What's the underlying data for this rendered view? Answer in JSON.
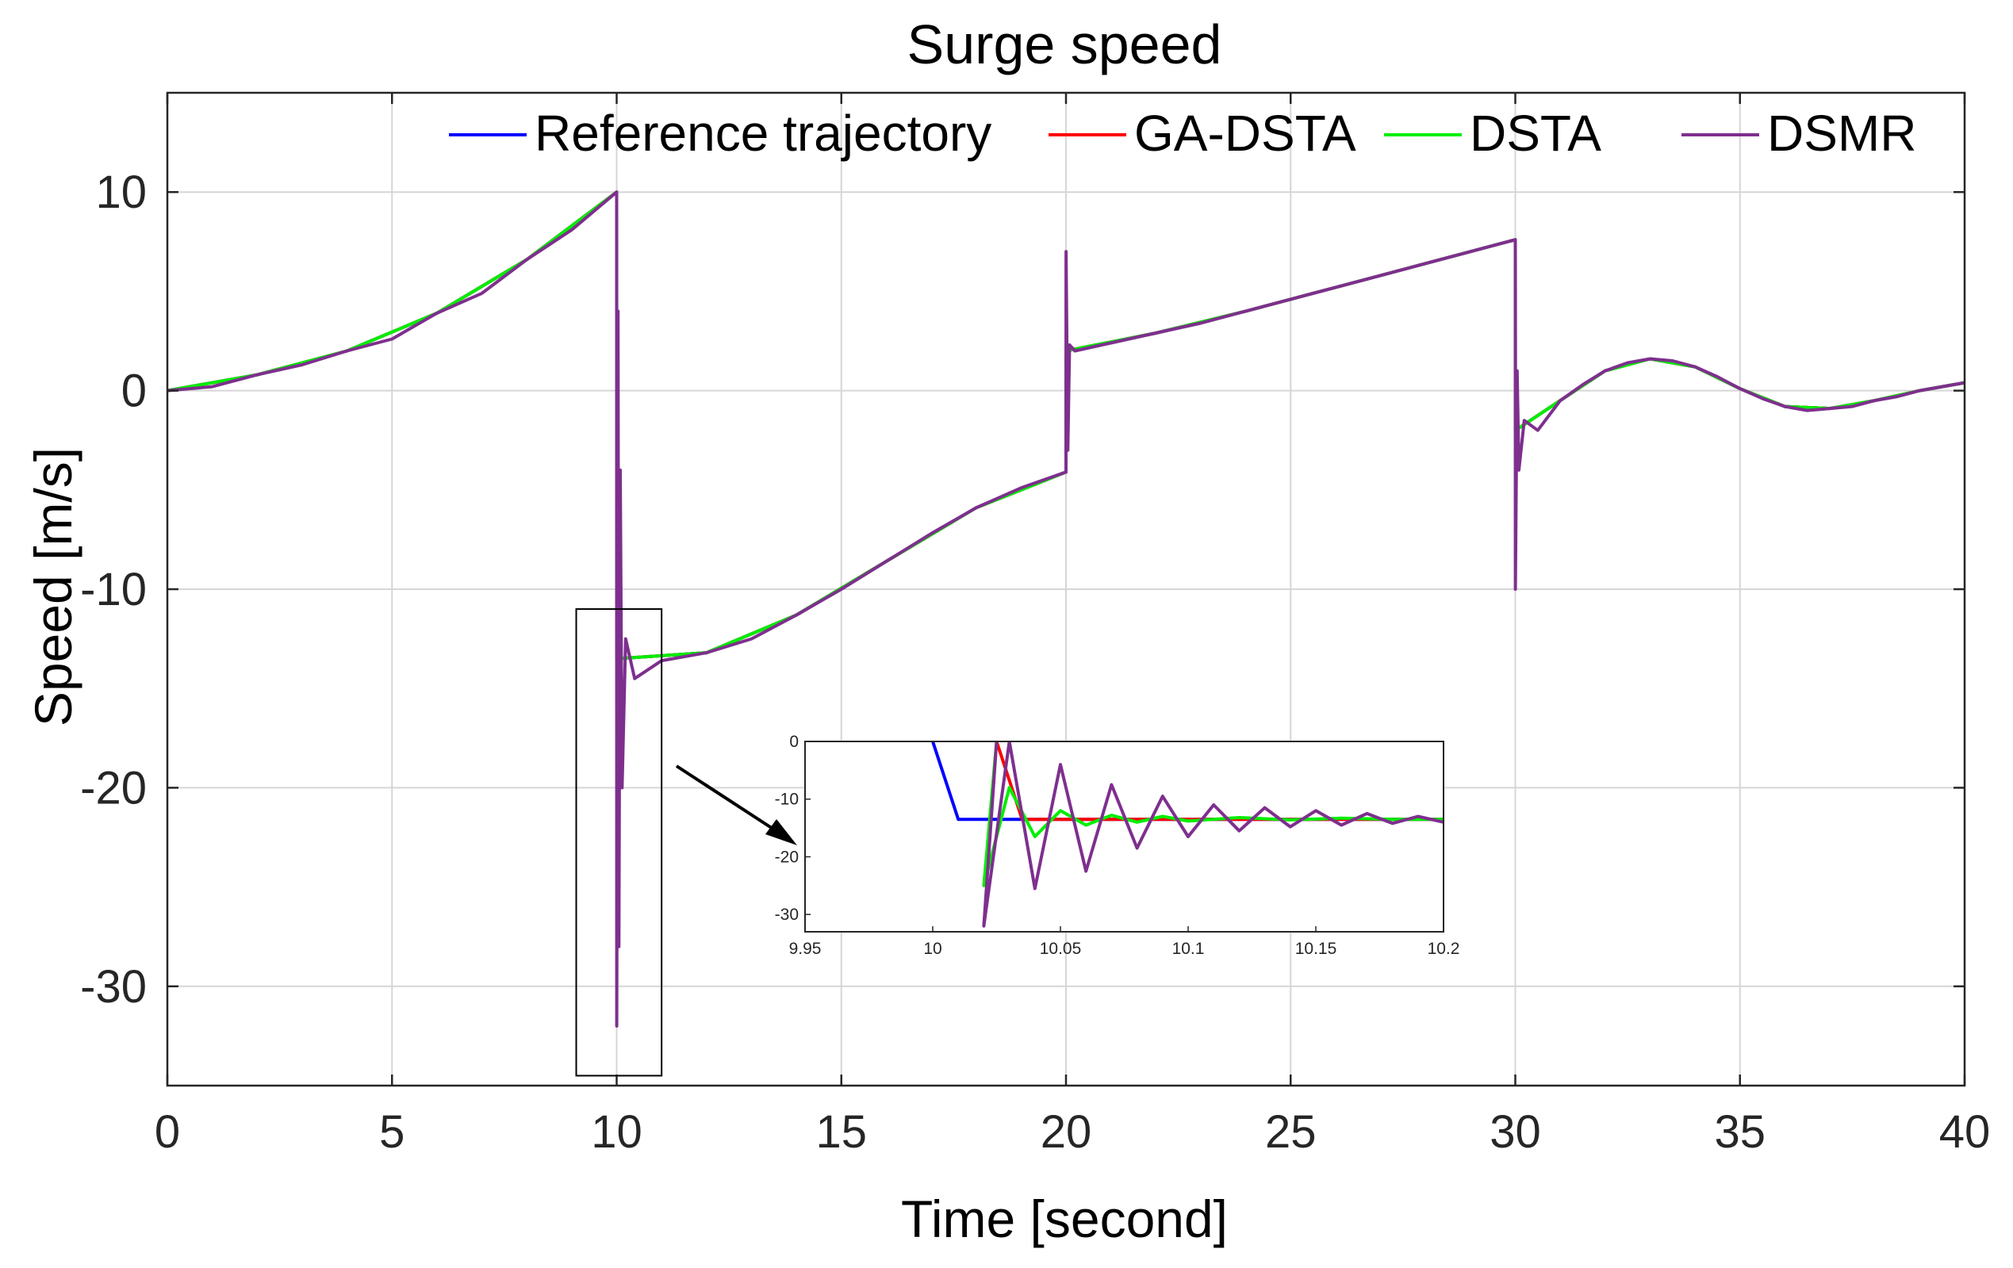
{
  "chart_data": {
    "type": "line",
    "title": "Surge speed",
    "xlabel": "Time [second]",
    "ylabel": "Speed [m/s]",
    "xlim": [
      0,
      40
    ],
    "ylim": [
      -35,
      15
    ],
    "xticks": [
      "0",
      "5",
      "10",
      "15",
      "20",
      "25",
      "30",
      "35",
      "40"
    ],
    "yticks": [
      "10",
      "0",
      "-10",
      "-20",
      "-30"
    ],
    "grid": true,
    "legend_position": "top-right",
    "series": [
      {
        "name": "Reference trajectory",
        "color": "#0000ff",
        "x": [
          0,
          2,
          4,
          6,
          8,
          10,
          10.001,
          12,
          14,
          16,
          18,
          20,
          20.001,
          22,
          24,
          26,
          28,
          30,
          30.001,
          31,
          32,
          33,
          34,
          35,
          36,
          37,
          38,
          39,
          40
        ],
        "y": [
          0,
          0.8,
          2.0,
          3.9,
          6.6,
          10,
          -13.5,
          -13.2,
          -11.3,
          -8.6,
          -5.9,
          -4.1,
          2.0,
          2.9,
          4.0,
          5.2,
          6.4,
          7.6,
          -2.0,
          -0.5,
          1.0,
          1.6,
          1.2,
          0.1,
          -0.8,
          -0.9,
          -0.5,
          0.0,
          0.4
        ]
      },
      {
        "name": "GA-DSTA",
        "color": "#ff0000",
        "x": [
          0,
          2,
          4,
          6,
          8,
          10,
          10.001,
          12,
          14,
          16,
          18,
          20,
          20.001,
          22,
          24,
          26,
          28,
          30,
          30.001,
          31,
          32,
          33,
          34,
          35,
          36,
          37,
          38,
          39,
          40
        ],
        "y": [
          0,
          0.8,
          2.0,
          3.9,
          6.6,
          10,
          -13.5,
          -13.2,
          -11.3,
          -8.6,
          -5.9,
          -4.1,
          2.0,
          2.9,
          4.0,
          5.2,
          6.4,
          7.6,
          -2.0,
          -0.5,
          1.0,
          1.6,
          1.2,
          0.1,
          -0.8,
          -0.9,
          -0.5,
          0.0,
          0.4
        ]
      },
      {
        "name": "DSTA",
        "color": "#00ee00",
        "x": [
          0,
          2,
          4,
          6,
          8,
          10,
          10.001,
          12,
          14,
          16,
          18,
          20,
          20.001,
          22,
          24,
          26,
          28,
          30,
          30.001,
          31,
          32,
          33,
          34,
          35,
          36,
          37,
          38,
          39,
          40
        ],
        "y": [
          0,
          0.8,
          2.0,
          3.9,
          6.6,
          10,
          -13.5,
          -13.2,
          -11.3,
          -8.6,
          -5.9,
          -4.1,
          2.0,
          2.9,
          4.0,
          5.2,
          6.4,
          7.6,
          -2.0,
          -0.5,
          1.0,
          1.6,
          1.2,
          0.1,
          -0.8,
          -0.9,
          -0.5,
          0.0,
          0.4
        ]
      },
      {
        "name": "DSMR",
        "color": "#7e2f8e",
        "x": [
          0,
          1,
          2,
          3,
          4,
          5,
          6,
          7,
          8,
          9,
          10,
          10.001,
          10.03,
          10.05,
          10.08,
          10.12,
          10.2,
          10.4,
          11,
          12,
          13,
          14,
          15,
          16,
          17,
          18,
          19,
          20,
          20.001,
          20.04,
          20.08,
          20.2,
          21,
          22,
          23,
          24,
          25,
          26,
          27,
          28,
          29,
          30,
          30.001,
          30.04,
          30.08,
          30.2,
          30.5,
          31,
          31.5,
          32,
          32.5,
          33,
          33.5,
          34,
          34.5,
          35,
          35.5,
          36,
          36.5,
          37,
          37.5,
          38,
          38.5,
          39,
          39.5,
          40
        ],
        "y": [
          0,
          0.2,
          0.8,
          1.3,
          2.0,
          2.6,
          3.9,
          4.9,
          6.6,
          8.1,
          10,
          -32,
          4,
          -28,
          -4,
          -20,
          -12.5,
          -14.5,
          -13.6,
          -13.2,
          -12.5,
          -11.3,
          -10,
          -8.6,
          -7.2,
          -5.9,
          -4.9,
          -4.1,
          7,
          -3,
          2.3,
          2.0,
          2.4,
          2.9,
          3.4,
          4.0,
          4.6,
          5.2,
          5.8,
          6.4,
          7.0,
          7.6,
          -10,
          1,
          -4,
          -1.5,
          -2.0,
          -0.5,
          0.3,
          1.0,
          1.4,
          1.6,
          1.5,
          1.2,
          0.7,
          0.1,
          -0.4,
          -0.8,
          -1.0,
          -0.9,
          -0.8,
          -0.5,
          -0.3,
          0.0,
          0.2,
          0.4
        ]
      }
    ],
    "zoom_region": {
      "x_range": [
        9.1,
        11.0
      ],
      "y_range": [
        -34.5,
        -11
      ]
    },
    "inset": {
      "xlim": [
        9.95,
        10.2
      ],
      "ylim": [
        -33,
        0
      ],
      "xticks": [
        "9.95",
        "10",
        "10.05",
        "10.1",
        "10.15",
        "10.2"
      ],
      "yticks": [
        "0",
        "-10",
        "-20",
        "-30"
      ],
      "series": [
        {
          "name": "Reference trajectory",
          "color": "#0000ff",
          "x": [
            10.0,
            10.01,
            10.2
          ],
          "y": [
            0,
            -13.5,
            -13.5
          ]
        },
        {
          "name": "GA-DSTA",
          "color": "#ff0000",
          "x": [
            10.025,
            10.035,
            10.2
          ],
          "y": [
            0,
            -13.5,
            -13.5
          ]
        },
        {
          "name": "DSTA",
          "color": "#00ee00",
          "x": [
            10.025,
            10.02,
            10.03,
            10.04,
            10.05,
            10.06,
            10.07,
            10.08,
            10.09,
            10.1,
            10.12,
            10.14,
            10.16,
            10.18,
            10.2
          ],
          "y": [
            0,
            -25,
            -8,
            -16.5,
            -12,
            -14.5,
            -12.8,
            -14,
            -13,
            -13.8,
            -13.2,
            -13.6,
            -13.3,
            -13.5,
            -13.5
          ]
        },
        {
          "name": "DSMR",
          "color": "#7e2f8e",
          "x": [
            10.025,
            10.02,
            10.03,
            10.04,
            10.05,
            10.06,
            10.07,
            10.08,
            10.09,
            10.1,
            10.11,
            10.12,
            10.13,
            10.14,
            10.15,
            10.16,
            10.17,
            10.18,
            10.19,
            10.2
          ],
          "y": [
            0,
            -32,
            0,
            -25.5,
            -4,
            -22.5,
            -7.5,
            -18.5,
            -9.5,
            -16.5,
            -11,
            -15.5,
            -11.5,
            -14.8,
            -12,
            -14.5,
            -12.5,
            -14.2,
            -13,
            -14
          ]
        }
      ]
    }
  }
}
